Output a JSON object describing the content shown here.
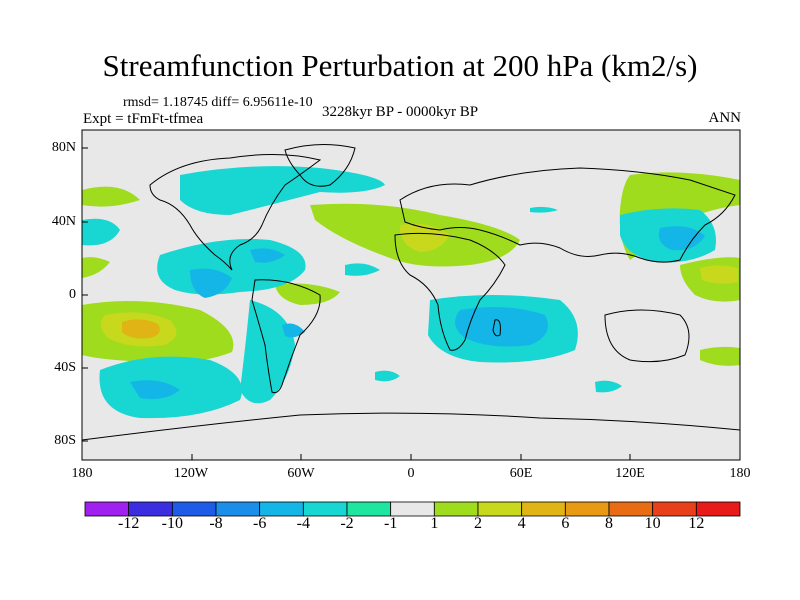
{
  "title": "Streamfunction Perturbation at 200 hPa (km2/s)",
  "stats": "rmsd= 1.18745 diff= 6.95611e-10",
  "experiment": "Expt = tFmFt-tfmea",
  "period": "3228kyr BP - 0000kyr BP",
  "season": "ANN",
  "lat_labels": [
    "80N",
    "40N",
    "0",
    "40S",
    "80S"
  ],
  "lon_labels": [
    "180",
    "120W",
    "60W",
    "0",
    "60E",
    "120E",
    "180"
  ],
  "colorbar": {
    "labels": [
      "-12",
      "-10",
      "-8",
      "-6",
      "-4",
      "-2",
      "-1",
      "1",
      "2",
      "4",
      "6",
      "8",
      "10",
      "12"
    ],
    "colors": [
      "#a020f0",
      "#3a2ee0",
      "#1e5be6",
      "#1a8ee8",
      "#13b6e6",
      "#18d6d2",
      "#1ee6a0",
      "#e8e8e8",
      "#9fdc1e",
      "#c8d81c",
      "#e0b414",
      "#e89a14",
      "#e86c14",
      "#e8401a",
      "#e81a1a"
    ]
  },
  "legend_colors": {
    "neg1": "#18d6d2",
    "neg2": "#1ee6a0",
    "neg3": "#13b6e6",
    "pos1": "#9fdc1e",
    "pos2": "#c8d81c",
    "pos3": "#e0b414"
  }
}
